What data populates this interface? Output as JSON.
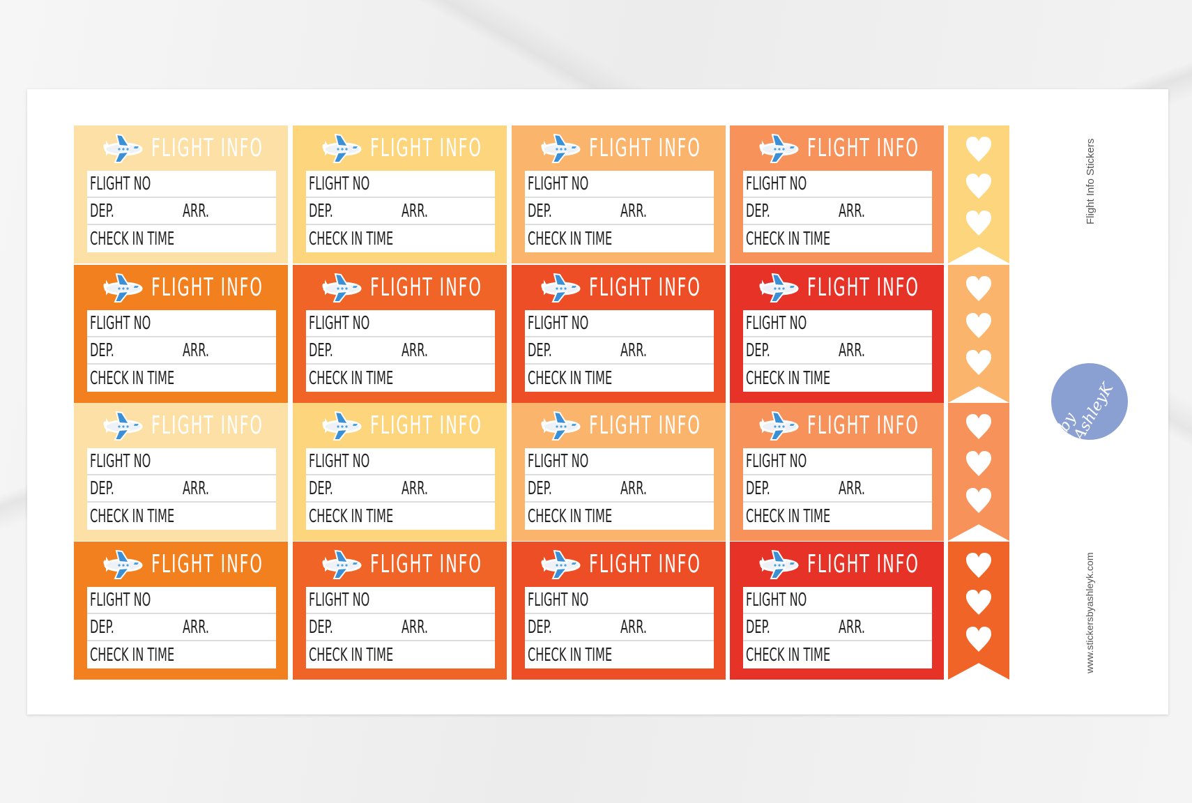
{
  "sheet": {
    "title": "Flight Info Stickers",
    "website": "www.stickersbyashleyk.com",
    "logo_text": "by AshleyK"
  },
  "sticker": {
    "heading": "FLIGHT INFO",
    "flight_no": "FLIGHT NO",
    "dep": "DEP.",
    "arr": "ARR.",
    "check_in": "CHECK IN TIME",
    "icon": "airplane-icon"
  },
  "colors": {
    "rows": [
      [
        "#fde0a5",
        "#fdd57d",
        "#fbb46c",
        "#f7925a"
      ],
      [
        "#f3801f",
        "#f06428",
        "#ee4e26",
        "#e63227"
      ],
      [
        "#fde0a5",
        "#fdd57d",
        "#fbb46c",
        "#f7925a"
      ],
      [
        "#f3801f",
        "#f06428",
        "#ee4e26",
        "#e63227"
      ]
    ],
    "flags": [
      "#fdd57d",
      "#fbb46c",
      "#f7925a",
      "#f06428"
    ]
  },
  "flag_icon": "heart-icon"
}
